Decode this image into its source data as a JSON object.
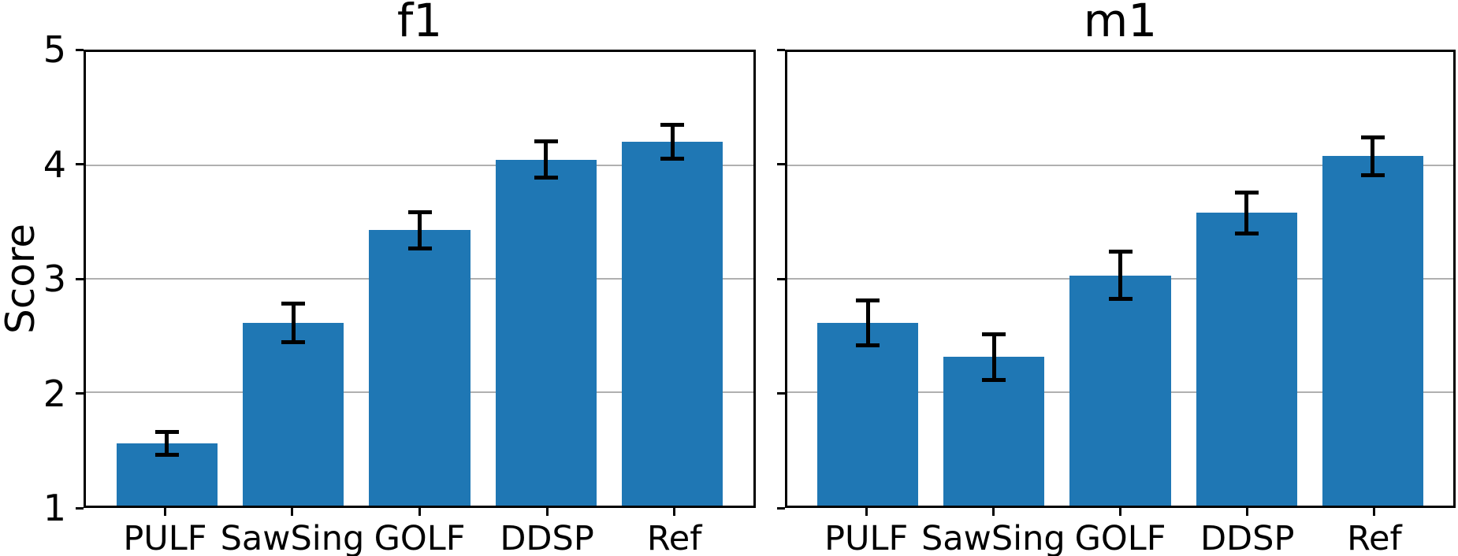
{
  "figure": {
    "background": "#ffffff",
    "text_color": "#000000",
    "grid_color": "#b0b0b0",
    "spine_color": "#000000",
    "errorbar_color": "#000000"
  },
  "chart_data": [
    {
      "type": "bar",
      "title": "f1",
      "ylabel": "Score",
      "categories": [
        "PULF",
        "SawSing",
        "GOLF",
        "DDSP",
        "Ref"
      ],
      "values": [
        1.55,
        2.61,
        3.43,
        4.05,
        4.21
      ],
      "errors": [
        0.1,
        0.17,
        0.16,
        0.16,
        0.15
      ],
      "ylim": [
        1,
        5
      ],
      "yticks": [
        1,
        2,
        3,
        4,
        5
      ],
      "grid": true,
      "legend": false,
      "bar_color": "#1f77b4",
      "show_ytick_labels": true
    },
    {
      "type": "bar",
      "title": "m1",
      "ylabel": "",
      "categories": [
        "PULF",
        "SawSing",
        "GOLF",
        "DDSP",
        "Ref"
      ],
      "values": [
        2.61,
        2.31,
        3.03,
        3.58,
        4.08
      ],
      "errors": [
        0.2,
        0.2,
        0.21,
        0.18,
        0.17
      ],
      "ylim": [
        1,
        5
      ],
      "yticks": [
        1,
        2,
        3,
        4,
        5
      ],
      "grid": true,
      "legend": false,
      "bar_color": "#1f77b4",
      "show_ytick_labels": false
    }
  ]
}
